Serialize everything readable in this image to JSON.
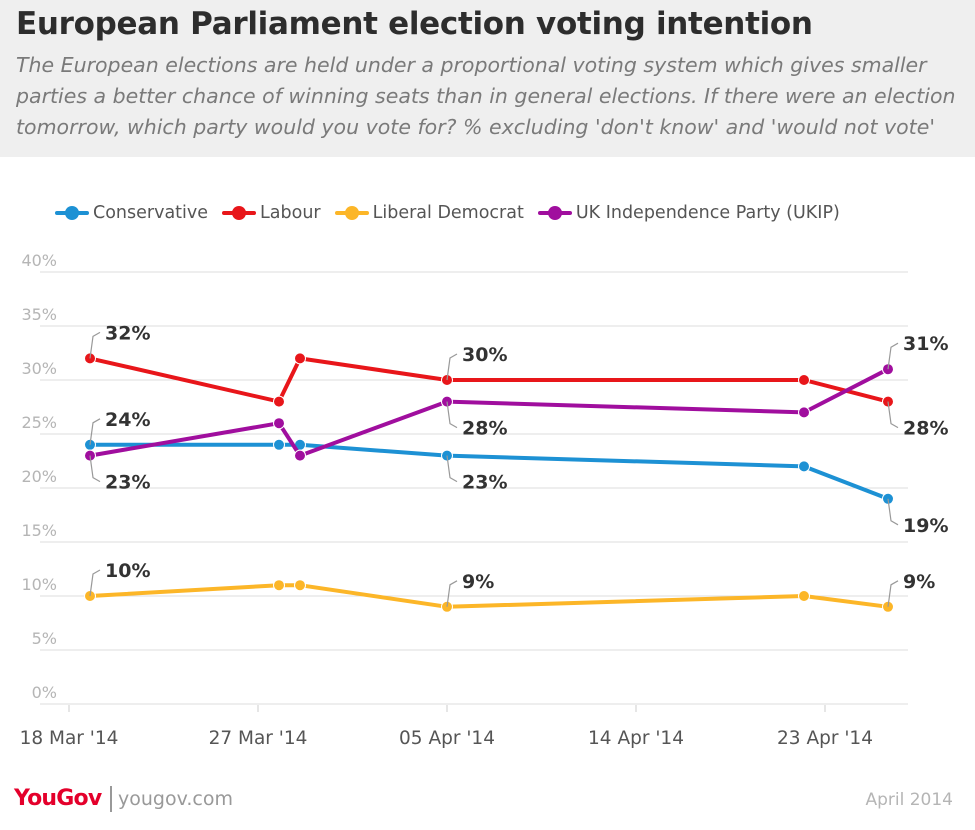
{
  "header": {
    "title": "European Parliament election voting intention",
    "subtitle": "The European elections are held under a proportional voting system which gives smaller parties a better chance of winning seats than in general elections. If there were an election tomorrow, which party would you vote for? % excluding 'don't know' and 'would not vote'"
  },
  "footer": {
    "logo": "YouGov",
    "url": "yougov.com",
    "date": "April 2014"
  },
  "chart_data": {
    "type": "line",
    "title": "European Parliament election voting intention",
    "xlabel": "",
    "ylabel": "",
    "x_unit": "date",
    "x_domain": [
      "2014-03-18",
      "2014-04-28"
    ],
    "ylim": [
      0,
      40
    ],
    "yticks": [
      0,
      5,
      10,
      15,
      20,
      25,
      30,
      35,
      40
    ],
    "ytick_labels": [
      "0%",
      "5%",
      "10%",
      "15%",
      "20%",
      "25%",
      "30%",
      "35%",
      "40%"
    ],
    "xticks": [
      "2014-03-18",
      "2014-03-27",
      "2014-04-05",
      "2014-04-14",
      "2014-04-23"
    ],
    "xtick_labels": [
      "18 Mar '14",
      "27 Mar '14",
      "05 Apr '14",
      "14 Apr '14",
      "23 Apr '14"
    ],
    "grid": "horizontal",
    "legend_position": "top-left",
    "x": [
      "2014-03-19",
      "2014-03-28",
      "2014-03-29",
      "2014-04-05",
      "2014-04-22",
      "2014-04-26"
    ],
    "series": [
      {
        "name": "Conservative",
        "color": "#1d91d4",
        "values": [
          24,
          24,
          24,
          23,
          22,
          19
        ]
      },
      {
        "name": "Labour",
        "color": "#e8161a",
        "values": [
          32,
          28,
          32,
          30,
          30,
          28
        ]
      },
      {
        "name": "Liberal Democrat",
        "color": "#fcb628",
        "values": [
          10,
          11,
          11,
          9,
          10,
          9
        ]
      },
      {
        "name": "UK Independence Party (UKIP)",
        "color": "#a00e9e",
        "values": [
          23,
          26,
          23,
          28,
          27,
          31
        ]
      }
    ],
    "annotations": [
      {
        "series": 1,
        "index": 0,
        "text": "32%",
        "side": "up"
      },
      {
        "series": 0,
        "index": 0,
        "text": "24%",
        "side": "up"
      },
      {
        "series": 3,
        "index": 0,
        "text": "23%",
        "side": "down"
      },
      {
        "series": 2,
        "index": 0,
        "text": "10%",
        "side": "up"
      },
      {
        "series": 1,
        "index": 3,
        "text": "30%",
        "side": "up"
      },
      {
        "series": 3,
        "index": 3,
        "text": "28%",
        "side": "down"
      },
      {
        "series": 0,
        "index": 3,
        "text": "23%",
        "side": "down"
      },
      {
        "series": 2,
        "index": 3,
        "text": "9%",
        "side": "up"
      },
      {
        "series": 3,
        "index": 5,
        "text": "31%",
        "side": "up"
      },
      {
        "series": 1,
        "index": 5,
        "text": "28%",
        "side": "down"
      },
      {
        "series": 0,
        "index": 5,
        "text": "19%",
        "side": "down"
      },
      {
        "series": 2,
        "index": 5,
        "text": "9%",
        "side": "up"
      }
    ]
  }
}
